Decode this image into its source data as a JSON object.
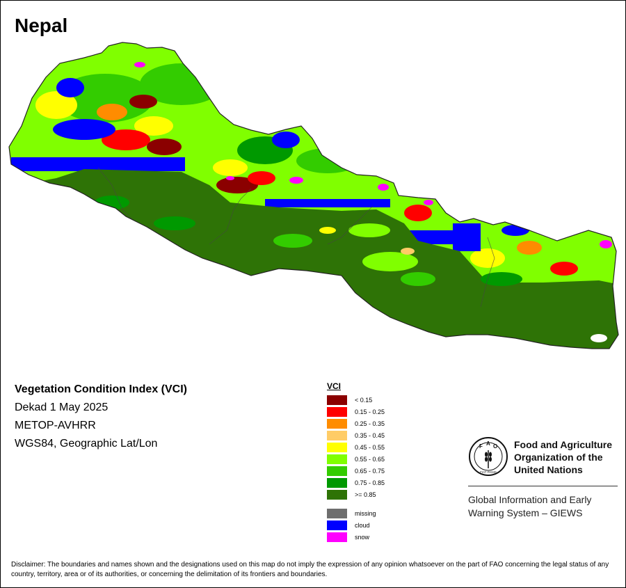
{
  "title": "Nepal",
  "info": {
    "index_name": "Vegetation Condition Index (VCI)",
    "period": "Dekad 1 May 2025",
    "sensor": "METOP-AVHRR",
    "projection": "WGS84, Geographic Lat/Lon"
  },
  "legend": {
    "title": "VCI",
    "classes": [
      {
        "label": "< 0.15",
        "color": "#8B0000"
      },
      {
        "label": "0.15 - 0.25",
        "color": "#FF0000"
      },
      {
        "label": "0.25 - 0.35",
        "color": "#FF8C00"
      },
      {
        "label": "0.35 - 0.45",
        "color": "#FFCC66"
      },
      {
        "label": "0.45 - 0.55",
        "color": "#FFFF00"
      },
      {
        "label": "0.55 - 0.65",
        "color": "#80FF00"
      },
      {
        "label": "0.65 - 0.75",
        "color": "#33CC00"
      },
      {
        "label": "0.75 - 0.85",
        "color": "#009900"
      },
      {
        "label": ">= 0.85",
        "color": "#2E7306"
      }
    ],
    "special": [
      {
        "label": "missing",
        "color": "#6E6E6E"
      },
      {
        "label": "cloud",
        "color": "#0000FF"
      },
      {
        "label": "snow",
        "color": "#FF00FF"
      }
    ]
  },
  "organization": {
    "name_line1": "Food and Agriculture",
    "name_line2": "Organization of the",
    "name_line3": "United Nations",
    "emblem_letters": [
      "F",
      "A",
      "O"
    ],
    "emblem_motto": "FIAT PANIS",
    "system_line1": "Global Information and Early",
    "system_line2": "Warning System – GIEWS"
  },
  "disclaimer": "Disclaimer: The boundaries and names shown and the designations used on this map do not imply the expression of any opinion whatsoever on the part of FAO concerning the legal status of any country, territory, area or of its authorities, or concerning the delimitation of its frontiers and boundaries."
}
